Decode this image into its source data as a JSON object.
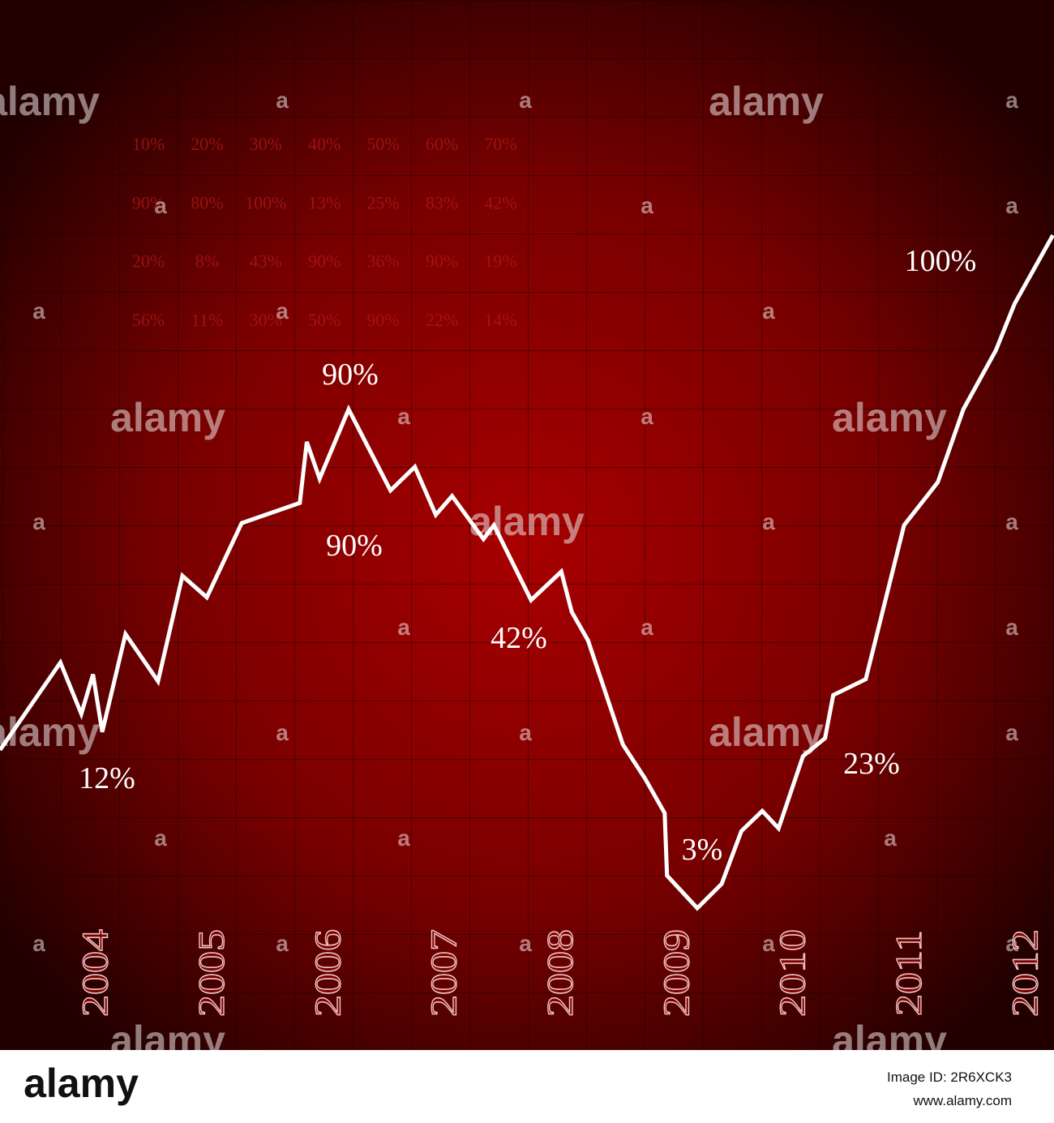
{
  "chart_data": {
    "type": "line",
    "x": [
      2003.2,
      2003.72,
      2003.9,
      2004.0,
      2004.08,
      2004.28,
      2004.56,
      2004.77,
      2004.98,
      2005.28,
      2005.78,
      2005.84,
      2005.95,
      2006.2,
      2006.56,
      2006.77,
      2006.95,
      2007.09,
      2007.36,
      2007.45,
      2007.77,
      2008.03,
      2008.12,
      2008.26,
      2008.56,
      2008.75,
      2008.92,
      2008.94,
      2009.2,
      2009.41,
      2009.58,
      2009.76,
      2009.9,
      2010.11,
      2010.3,
      2010.37,
      2010.65,
      2010.98,
      2011.27,
      2011.49,
      2011.77,
      2011.93,
      2012.26
    ],
    "values": [
      25.8,
      38.4,
      31.0,
      36.7,
      28.4,
      42.5,
      35.7,
      50.9,
      47.8,
      58.5,
      61.4,
      70.2,
      64.9,
      74.9,
      63.2,
      66.6,
      59.7,
      62.4,
      56.2,
      58.2,
      47.4,
      51.5,
      45.7,
      41.6,
      26.6,
      21.7,
      16.7,
      7.7,
      3,
      6.5,
      14.1,
      17.0,
      14.5,
      24.9,
      27.5,
      33.7,
      36.0,
      58.2,
      64.4,
      74.9,
      83.4,
      90.1,
      100
    ],
    "color": "#ffffff",
    "xlim": [
      2003.2,
      2012.27
    ],
    "ylim": [
      -17.45,
      133.9
    ],
    "xticks": [
      2004,
      2005,
      2006,
      2007,
      2008,
      2009,
      2010,
      2011,
      2012
    ],
    "annotations": [
      "12%",
      "90%",
      "90%",
      "42%",
      "3%",
      "23%",
      "100%"
    ]
  },
  "background_table": {
    "rows": [
      [
        "10%",
        "20%",
        "30%",
        "40%",
        "50%",
        "60%",
        "70%"
      ],
      [
        "90%",
        "80%",
        "100%",
        "13%",
        "25%",
        "83%",
        "42%"
      ],
      [
        "20%",
        "8%",
        "43%",
        "90%",
        "36%",
        "90%",
        "19%"
      ],
      [
        "56%",
        "11%",
        "30%",
        "50%",
        "90%",
        "22%",
        "14%"
      ]
    ]
  },
  "watermark": "alamy",
  "watermark_mark": "a",
  "footer": {
    "logo": "alamy",
    "image_id": "Image ID: 2R6XCK3",
    "url": "www.alamy.com"
  }
}
